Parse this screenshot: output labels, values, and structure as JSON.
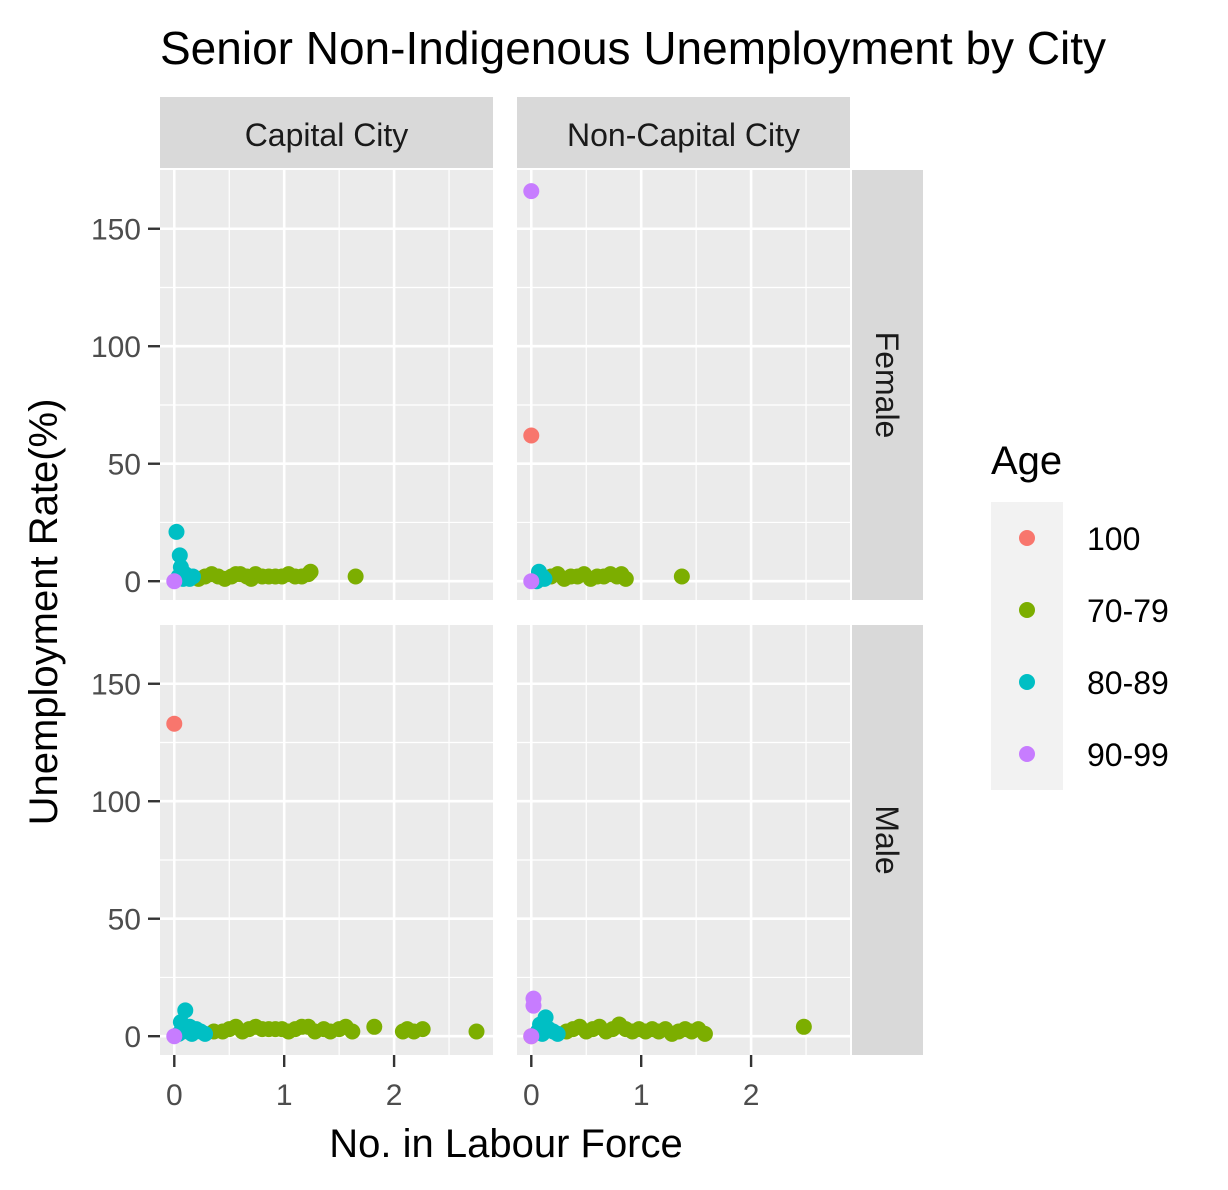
{
  "chart_data": {
    "type": "scatter",
    "title": "Senior Non-Indigenous Unemployment by City",
    "xlabel": "No. in Labour Force",
    "ylabel": "Unemployment Rate(%)",
    "xlim": [
      -0.13,
      2.9
    ],
    "ylim": [
      -8,
      175
    ],
    "x_ticks": [
      0,
      1,
      2
    ],
    "y_ticks": [
      0,
      50,
      100,
      150
    ],
    "x_tick_labels": [
      "0",
      "1",
      "2"
    ],
    "y_tick_labels": [
      "0",
      "50",
      "100",
      "150"
    ],
    "grid": true,
    "columns": [
      "Capital City",
      "Non-Capital City"
    ],
    "rows": [
      "Female",
      "Male"
    ],
    "legend": {
      "title": "Age",
      "position": "right",
      "entries": [
        {
          "label": "100",
          "color": "#F8766D"
        },
        {
          "label": "70-79",
          "color": "#7CAE00"
        },
        {
          "label": "80-89",
          "color": "#00BFC4"
        },
        {
          "label": "90-99",
          "color": "#C77CFF"
        }
      ]
    },
    "panels": [
      {
        "column": "Capital City",
        "row": "Female",
        "series": [
          {
            "name": "70-79",
            "points": [
              [
                0.22,
                1
              ],
              [
                0.28,
                2
              ],
              [
                0.34,
                3
              ],
              [
                0.4,
                2
              ],
              [
                0.46,
                1
              ],
              [
                0.52,
                2
              ],
              [
                0.56,
                3
              ],
              [
                0.6,
                3
              ],
              [
                0.66,
                2
              ],
              [
                0.7,
                1
              ],
              [
                0.74,
                3
              ],
              [
                0.8,
                2
              ],
              [
                0.86,
                2
              ],
              [
                0.92,
                2
              ],
              [
                0.98,
                2
              ],
              [
                1.04,
                3
              ],
              [
                1.1,
                2
              ],
              [
                1.16,
                2
              ],
              [
                1.22,
                3
              ],
              [
                1.24,
                4
              ],
              [
                1.65,
                2
              ]
            ]
          },
          {
            "name": "80-89",
            "points": [
              [
                0.02,
                21
              ],
              [
                0.05,
                11
              ],
              [
                0.06,
                6
              ],
              [
                0.04,
                2
              ],
              [
                0.08,
                1
              ],
              [
                0.1,
                3
              ],
              [
                0.12,
                2
              ],
              [
                0.14,
                1
              ],
              [
                0.17,
                2
              ],
              [
                0.07,
                4
              ]
            ]
          },
          {
            "name": "90-99",
            "points": [
              [
                0.0,
                0
              ]
            ]
          }
        ]
      },
      {
        "column": "Non-Capital City",
        "row": "Female",
        "series": [
          {
            "name": "100",
            "points": [
              [
                0.0,
                62
              ]
            ]
          },
          {
            "name": "70-79",
            "points": [
              [
                0.18,
                2
              ],
              [
                0.24,
                3
              ],
              [
                0.3,
                1
              ],
              [
                0.36,
                2
              ],
              [
                0.42,
                2
              ],
              [
                0.48,
                3
              ],
              [
                0.54,
                1
              ],
              [
                0.6,
                2
              ],
              [
                0.66,
                2
              ],
              [
                0.72,
                3
              ],
              [
                0.78,
                2
              ],
              [
                0.82,
                3
              ],
              [
                0.86,
                1
              ],
              [
                1.37,
                2
              ]
            ]
          },
          {
            "name": "80-89",
            "points": [
              [
                0.07,
                4
              ],
              [
                0.1,
                2
              ],
              [
                0.12,
                1
              ],
              [
                0.05,
                0
              ]
            ]
          },
          {
            "name": "90-99",
            "points": [
              [
                0.0,
                166
              ],
              [
                0.0,
                0
              ]
            ]
          }
        ]
      },
      {
        "column": "Capital City",
        "row": "Male",
        "series": [
          {
            "name": "100",
            "points": [
              [
                0.0,
                133
              ]
            ]
          },
          {
            "name": "70-79",
            "points": [
              [
                0.36,
                2
              ],
              [
                0.44,
                2
              ],
              [
                0.5,
                3
              ],
              [
                0.56,
                4
              ],
              [
                0.62,
                2
              ],
              [
                0.68,
                3
              ],
              [
                0.74,
                4
              ],
              [
                0.8,
                3
              ],
              [
                0.86,
                3
              ],
              [
                0.92,
                3
              ],
              [
                0.98,
                3
              ],
              [
                1.04,
                2
              ],
              [
                1.1,
                3
              ],
              [
                1.16,
                4
              ],
              [
                1.22,
                4
              ],
              [
                1.28,
                2
              ],
              [
                1.36,
                3
              ],
              [
                1.42,
                2
              ],
              [
                1.5,
                3
              ],
              [
                1.56,
                4
              ],
              [
                1.62,
                2
              ],
              [
                1.82,
                4
              ],
              [
                2.08,
                2
              ],
              [
                2.12,
                3
              ],
              [
                2.18,
                2
              ],
              [
                2.26,
                3
              ],
              [
                2.75,
                2
              ]
            ]
          },
          {
            "name": "80-89",
            "points": [
              [
                0.1,
                11
              ],
              [
                0.06,
                6
              ],
              [
                0.14,
                4
              ],
              [
                0.08,
                2
              ],
              [
                0.16,
                1
              ],
              [
                0.2,
                3
              ],
              [
                0.24,
                2
              ],
              [
                0.28,
                1
              ],
              [
                0.12,
                3
              ],
              [
                0.04,
                1
              ]
            ]
          },
          {
            "name": "90-99",
            "points": [
              [
                0.0,
                0
              ]
            ]
          }
        ]
      },
      {
        "column": "Non-Capital City",
        "row": "Male",
        "series": [
          {
            "name": "100",
            "points": [
              [
                0.0,
                0
              ]
            ]
          },
          {
            "name": "70-79",
            "points": [
              [
                0.32,
                2
              ],
              [
                0.38,
                3
              ],
              [
                0.44,
                4
              ],
              [
                0.5,
                2
              ],
              [
                0.56,
                3
              ],
              [
                0.62,
                4
              ],
              [
                0.68,
                2
              ],
              [
                0.74,
                3
              ],
              [
                0.8,
                5
              ],
              [
                0.86,
                3
              ],
              [
                0.92,
                2
              ],
              [
                0.98,
                3
              ],
              [
                1.04,
                2
              ],
              [
                1.1,
                3
              ],
              [
                1.16,
                2
              ],
              [
                1.22,
                3
              ],
              [
                1.28,
                1
              ],
              [
                1.34,
                2
              ],
              [
                1.4,
                3
              ],
              [
                1.46,
                2
              ],
              [
                1.52,
                3
              ],
              [
                1.58,
                1
              ],
              [
                2.48,
                4
              ]
            ]
          },
          {
            "name": "80-89",
            "points": [
              [
                0.13,
                8
              ],
              [
                0.08,
                5
              ],
              [
                0.16,
                3
              ],
              [
                0.2,
                2
              ],
              [
                0.24,
                1
              ],
              [
                0.1,
                1
              ],
              [
                0.06,
                2
              ]
            ]
          },
          {
            "name": "90-99",
            "points": [
              [
                0.02,
                16
              ],
              [
                0.02,
                13
              ],
              [
                0.0,
                0
              ]
            ]
          }
        ]
      }
    ]
  }
}
